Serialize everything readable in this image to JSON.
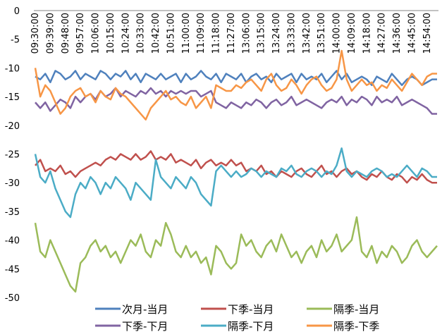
{
  "chart_data": {
    "type": "line",
    "categories": [
      "09:30:00",
      null,
      null,
      "09:39:00",
      null,
      null,
      "09:48:00",
      null,
      null,
      "09:57:00",
      null,
      null,
      "10:06:00",
      null,
      null,
      "10:15:00",
      null,
      null,
      "10:24:00",
      null,
      null,
      "10:33:00",
      null,
      null,
      "10:42:00",
      null,
      null,
      "10:51:00",
      null,
      null,
      "11:00:00",
      null,
      null,
      "11:09:00",
      null,
      null,
      "11:18:00",
      null,
      null,
      "11:27:00",
      null,
      null,
      "13:06:00",
      null,
      null,
      "13:15:00",
      null,
      null,
      "13:24:00",
      null,
      null,
      "13:33:00",
      null,
      null,
      "13:42:00",
      null,
      null,
      "13:51:00",
      null,
      null,
      "14:00:00",
      null,
      null,
      "14:09:00",
      null,
      null,
      "14:18:00",
      null,
      null,
      "14:27:00",
      null,
      null,
      "14:36:00",
      null,
      null,
      "14:45:00",
      null,
      null,
      "14:54:00",
      null,
      null
    ],
    "ylim": [
      -50,
      0
    ],
    "yticks": [
      0,
      -5,
      -10,
      -15,
      -20,
      -25,
      -30,
      -35,
      -40,
      -45,
      -50
    ],
    "series": [
      {
        "name": "次月-当月",
        "color": "#4f81bd",
        "values": [
          -11.5,
          -12,
          -11,
          -12.5,
          -10.5,
          -11,
          -12,
          -11.5,
          -10.5,
          -12,
          -11,
          -11.5,
          -12,
          -10.5,
          -11,
          -12,
          -11,
          -11.5,
          -10.5,
          -12,
          -11,
          -12.5,
          -11,
          -11.5,
          -12,
          -11,
          -12,
          -11.5,
          -11,
          -12.5,
          -11,
          -12,
          -11.5,
          -10.5,
          -11.5,
          -12,
          -11,
          -12.5,
          -11,
          -11.5,
          -12,
          -11,
          -12.5,
          -11.5,
          -11,
          -12,
          -11.5,
          -12.5,
          -11,
          -12,
          -11.5,
          -11,
          -12.5,
          -11,
          -12,
          -11.5,
          -12,
          -11,
          -12.5,
          -11.5,
          -10.5,
          -12,
          -11,
          -12.5,
          -12,
          -11.5,
          -12,
          -13,
          -11.5,
          -12,
          -12.5,
          -11,
          -12,
          -13,
          -12,
          -11.5,
          -12,
          -13,
          -12.5,
          -12,
          -12
        ]
      },
      {
        "name": "下季-当月",
        "color": "#c0504d",
        "values": [
          -27,
          -26,
          -28,
          -27.5,
          -28,
          -27,
          -28.5,
          -28,
          -29,
          -28,
          -27.5,
          -27,
          -26.5,
          -27,
          -26,
          -25.5,
          -26,
          -25,
          -25.5,
          -26,
          -25,
          -26,
          -25.5,
          -24.5,
          -26,
          -25.5,
          -26,
          -25,
          -26.5,
          -26,
          -26.5,
          -27,
          -26,
          -27.5,
          -26.5,
          -26,
          -27,
          -26.5,
          -27,
          -26,
          -27,
          -26.5,
          -28,
          -27.5,
          -28,
          -27,
          -28.5,
          -28,
          -29,
          -28,
          -28.5,
          -29,
          -28,
          -27.5,
          -28.5,
          -29,
          -28,
          -27,
          -28.5,
          -28,
          -29,
          -28,
          -27.5,
          -28.5,
          -28,
          -29,
          -29.5,
          -28.5,
          -29,
          -28,
          -29,
          -29.5,
          -28.5,
          -29,
          -30,
          -29,
          -29.5,
          -28.5,
          -29.5,
          -30,
          -30
        ]
      },
      {
        "name": "隔季-当月",
        "color": "#9bbb59",
        "values": [
          -37,
          -42,
          -43,
          -40,
          -42,
          -44,
          -46,
          -48,
          -49,
          -44,
          -43,
          -41,
          -40,
          -42,
          -41,
          -43,
          -42,
          -44,
          -42,
          -40,
          -41,
          -39,
          -42,
          -43,
          -40,
          -41,
          -37,
          -39,
          -42,
          -43,
          -41,
          -43,
          -42,
          -44,
          -43,
          -46,
          -41,
          -42,
          -44,
          -45,
          -44,
          -39,
          -41,
          -40,
          -42,
          -43,
          -41,
          -40,
          -42,
          -39,
          -41,
          -43,
          -42,
          -44,
          -42,
          -41,
          -43,
          -40,
          -42,
          -41,
          -39,
          -42,
          -41,
          -40,
          -36,
          -42,
          -43,
          -41,
          -44,
          -42,
          -43,
          -41,
          -42,
          -44,
          -43,
          -41,
          -40,
          -42,
          -43,
          -42,
          -41
        ]
      },
      {
        "name": "下季-下月",
        "color": "#8064a2",
        "values": [
          -16,
          -17,
          -16,
          -17.5,
          -16.5,
          -15.5,
          -16,
          -17,
          -15,
          -16,
          -15,
          -14.5,
          -15.5,
          -14,
          -15,
          -14.5,
          -13.5,
          -15,
          -14,
          -14.5,
          -15,
          -14,
          -14.5,
          -13.5,
          -14.5,
          -14,
          -15,
          -14,
          -14.5,
          -14,
          -14.5,
          -14,
          -14,
          -15,
          -14.5,
          -14,
          -16,
          -16.5,
          -17,
          -16,
          -16.5,
          -17,
          -16,
          -16.5,
          -15.5,
          -16,
          -17,
          -16,
          -15.5,
          -16.5,
          -16,
          -15,
          -16.5,
          -16,
          -15.5,
          -16,
          -16.5,
          -17,
          -16,
          -15.5,
          -16,
          -15,
          -16.5,
          -15.5,
          -16,
          -15,
          -15.5,
          -16.5,
          -15,
          -16,
          -15.5,
          -16,
          -15,
          -16.5,
          -16,
          -15.5,
          -16,
          -16.5,
          -17,
          -18,
          -18
        ]
      },
      {
        "name": "隔季-下月",
        "color": "#4bacc6",
        "values": [
          -25,
          -29,
          -30,
          -28,
          -31,
          -33,
          -35,
          -36,
          -32,
          -30,
          -31,
          -29,
          -30,
          -32,
          -30,
          -31,
          -29,
          -30,
          -31,
          -33,
          -30,
          -31,
          -32,
          -33,
          -26,
          -29,
          -30,
          -31,
          -29,
          -30,
          -31,
          -29,
          -30,
          -32,
          -33,
          -34,
          -28,
          -27,
          -28,
          -29,
          -28,
          -29,
          -28.5,
          -27.5,
          -28,
          -29,
          -28,
          -28.5,
          -29,
          -27.5,
          -28,
          -27,
          -28.5,
          -29,
          -28,
          -27.5,
          -28,
          -29,
          -28,
          -28.5,
          -27,
          -24,
          -28,
          -29,
          -28,
          -28.5,
          -29,
          -28,
          -27.5,
          -28,
          -29,
          -28.5,
          -29,
          -28,
          -27,
          -28,
          -29,
          -27.5,
          -28,
          -29,
          -29
        ]
      },
      {
        "name": "隔季-下季",
        "color": "#f79646",
        "values": [
          -10,
          -15,
          -13,
          -14,
          -16,
          -18,
          -17,
          -15,
          -14,
          -13.5,
          -15,
          -14.5,
          -16,
          -14,
          -15,
          -15.5,
          -13.5,
          -14.5,
          -15,
          -16,
          -17,
          -18,
          -19,
          -17,
          -16,
          -15,
          -14,
          -15.5,
          -15,
          -16,
          -16.5,
          -15,
          -17,
          -16,
          -15,
          -17,
          -13,
          -13.5,
          -14,
          -14,
          -13,
          -13.5,
          -12.5,
          -12,
          -13,
          -14,
          -12,
          -11,
          -13,
          -14,
          -13.5,
          -12,
          -13,
          -14.5,
          -13,
          -12,
          -11.5,
          -13,
          -14,
          -13.5,
          -12,
          -7,
          -12,
          -14,
          -13,
          -12,
          -13,
          -12.5,
          -14,
          -13,
          -13.5,
          -12,
          -13,
          -14,
          -12.5,
          -11,
          -12,
          -13,
          -11.5,
          -11,
          -11
        ]
      }
    ]
  }
}
